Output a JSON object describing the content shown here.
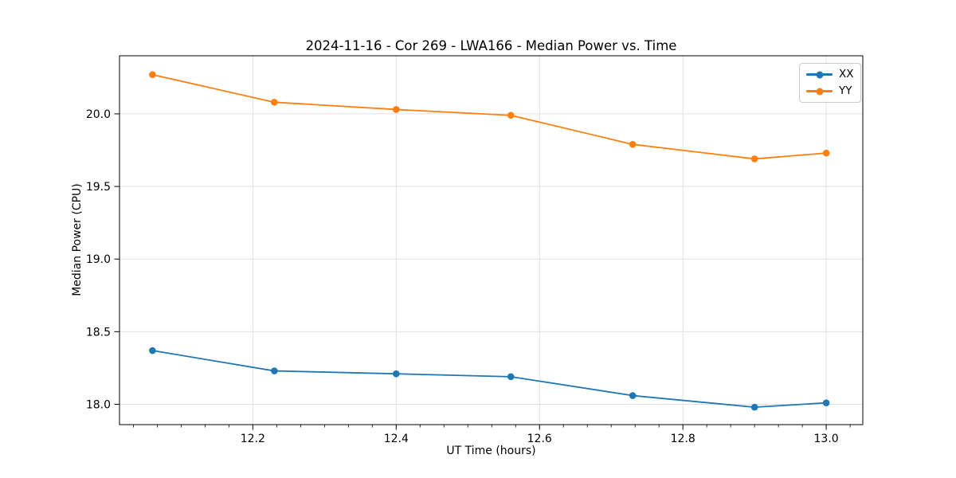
{
  "chart_data": {
    "type": "line",
    "title": "2024-11-16 - Cor 269 - LWA166 - Median Power vs. Time",
    "xlabel": "UT Time (hours)",
    "ylabel": "Median Power (CPU)",
    "x": [
      12.06,
      12.23,
      12.4,
      12.56,
      12.73,
      12.9,
      13.0
    ],
    "series": [
      {
        "name": "XX",
        "color": "#1f77b4",
        "values": [
          18.37,
          18.23,
          18.21,
          18.19,
          18.06,
          17.98,
          18.01
        ]
      },
      {
        "name": "YY",
        "color": "#ff7f0e",
        "values": [
          20.27,
          20.08,
          20.03,
          19.99,
          19.79,
          19.69,
          19.73
        ]
      }
    ],
    "xlim": [
      12.014,
      13.051
    ],
    "ylim": [
      17.86,
      20.4
    ],
    "xticks": {
      "values": [
        12.2,
        12.4,
        12.6,
        12.8,
        13.0
      ],
      "labels": [
        "12.2",
        "12.4",
        "12.6",
        "12.8",
        "13.0"
      ]
    },
    "yticks": {
      "values": [
        18.0,
        18.5,
        19.0,
        19.5,
        20.0
      ],
      "labels": [
        "18.0",
        "18.5",
        "19.0",
        "19.5",
        "20.0"
      ]
    },
    "x_minor_step": 0.0333333,
    "x_minor_base": 12.0,
    "grid": true,
    "grid_color": "#e0e0e0",
    "axis_color": "#000000",
    "legend": {
      "position": "upper right"
    }
  }
}
